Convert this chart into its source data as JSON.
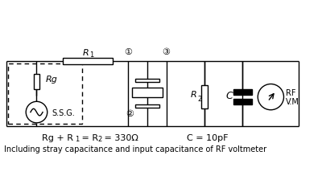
{
  "bg_color": "#ffffff",
  "line_color": "#000000",
  "node1": "①",
  "node2": "②",
  "node3": "③",
  "label_Rg": "Rg",
  "label_SSG": "S.S.G.",
  "label_RF": "RF",
  "label_VM": "V.M",
  "text_bottom1": "Rg + R",
  "text_bottom1_sub": "1",
  "text_bottom2": " = R",
  "text_bottom2_sub": "2",
  "text_bottom3": " = 330Ω",
  "text_bottom4": "C = 10pF",
  "text_bottom5": "Including stray capacitance and input capacitance of RF voltmeter"
}
